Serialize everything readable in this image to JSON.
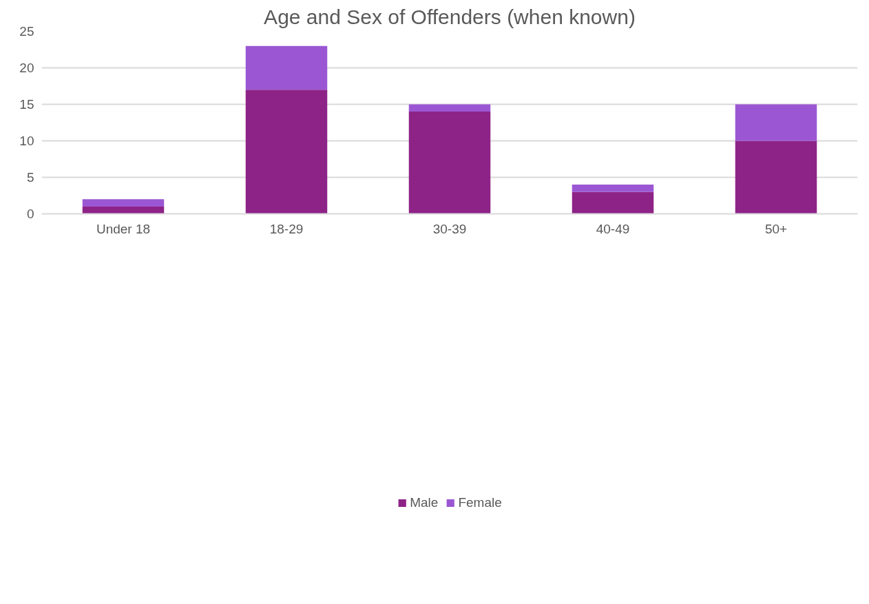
{
  "chart_data": {
    "type": "bar",
    "title": "Age and Sex of Offenders (when known)",
    "categories": [
      "Under 18",
      "18-29",
      "30-39",
      "40-49",
      "50+"
    ],
    "stacked": true,
    "series": [
      {
        "name": "Male",
        "color": "#8e2387",
        "values": [
          1,
          17,
          14,
          3,
          10
        ]
      },
      {
        "name": "Female",
        "color": "#9b57d3",
        "values": [
          1,
          6,
          1,
          1,
          5
        ]
      }
    ],
    "ylim": [
      0,
      25
    ],
    "yticks": [
      0,
      5,
      10,
      15,
      20,
      25
    ],
    "grid": "y",
    "legend": "bottom"
  }
}
